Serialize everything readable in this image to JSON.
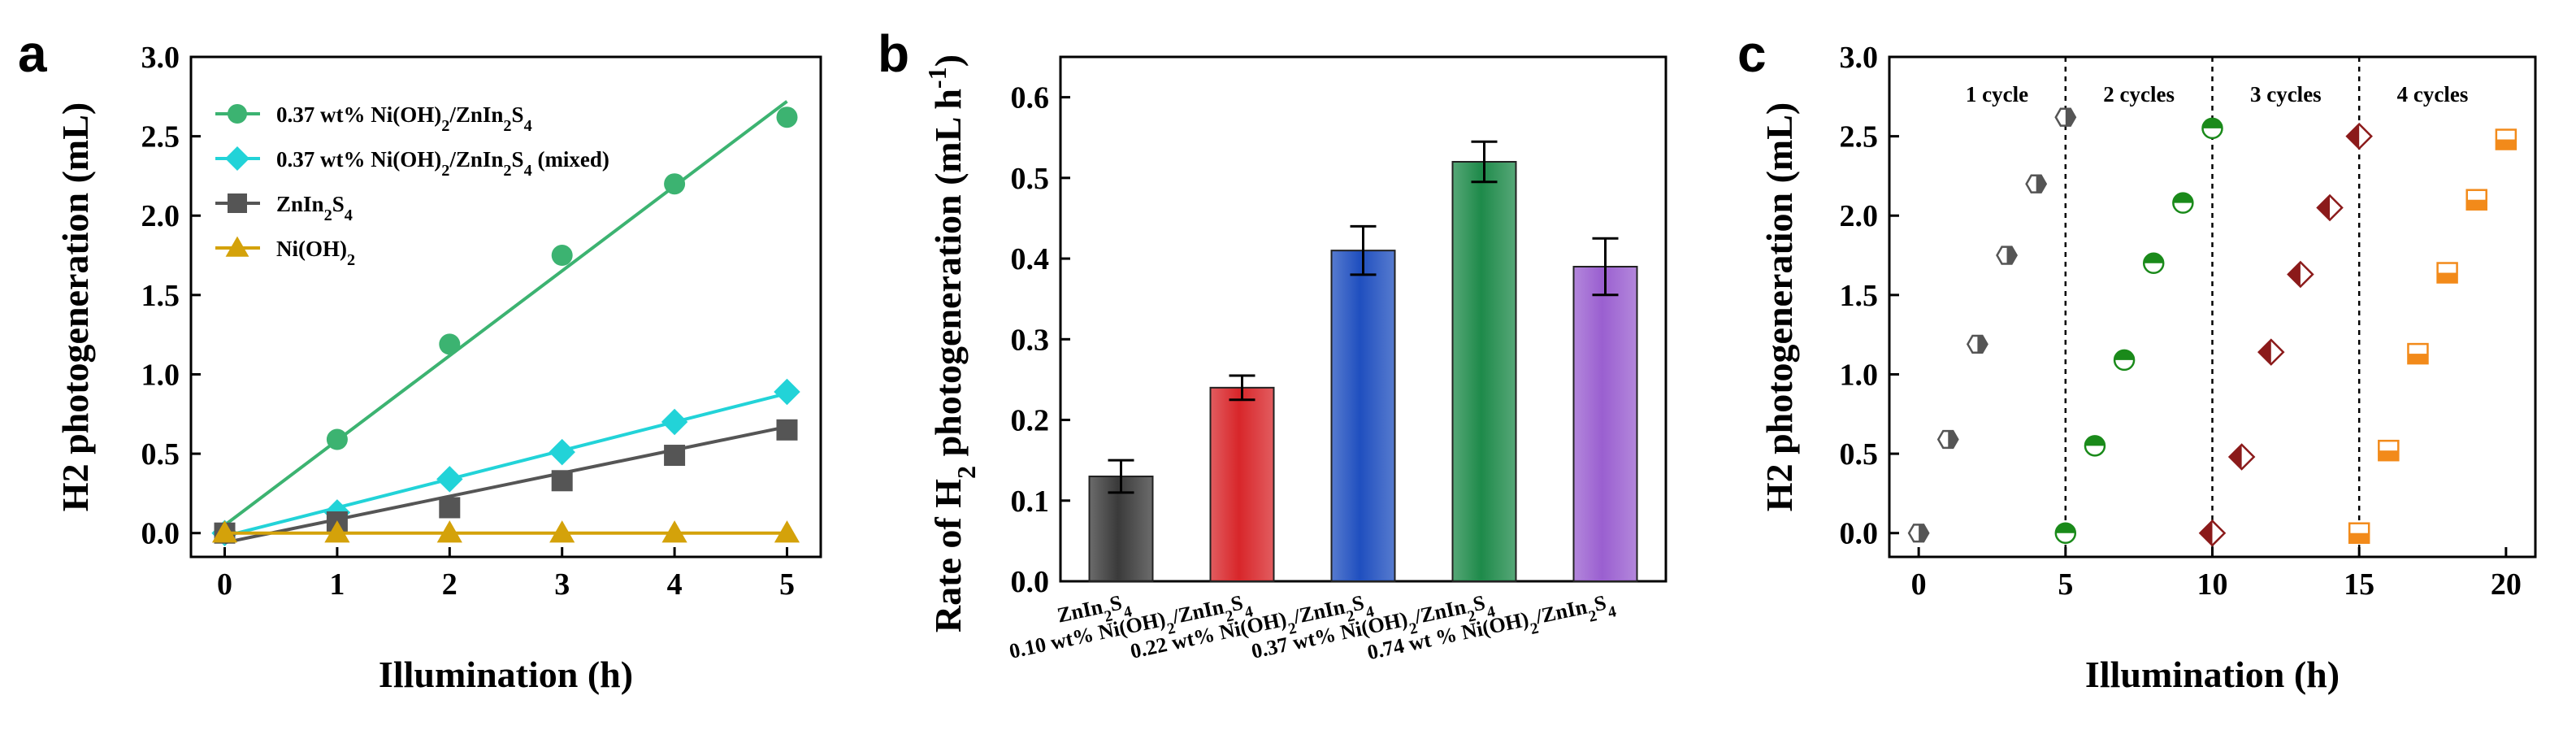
{
  "chart_data": [
    {
      "panel": "a",
      "type": "line",
      "title": "",
      "xlabel": "Illumination (h)",
      "ylabel": "H2 photogeneration (mL)",
      "xlim": [
        -0.3,
        5.3
      ],
      "ylim": [
        -0.15,
        3.0
      ],
      "xticks": [
        "0",
        "1",
        "2",
        "3",
        "4",
        "5"
      ],
      "yticks": [
        "0.0",
        "0.5",
        "1.0",
        "1.5",
        "2.0",
        "2.5",
        "3.0"
      ],
      "legend_position": "top-left",
      "x": [
        0,
        1,
        2,
        3,
        4,
        5
      ],
      "series": [
        {
          "name": "0.37 wt% Ni(OH)2/ZnIn2S4",
          "color": "#3cb371",
          "marker": "circle",
          "values": [
            0.0,
            0.59,
            1.19,
            1.75,
            2.2,
            2.62
          ],
          "fit_line": [
            0.05,
            2.72
          ]
        },
        {
          "name": "0.37 wt% Ni(OH)2/ZnIn2S4 (mixed)",
          "color": "#22d3d8",
          "marker": "diamond",
          "values": [
            0.0,
            0.13,
            0.34,
            0.51,
            0.7,
            0.89
          ],
          "fit_line": [
            -0.02,
            0.88
          ]
        },
        {
          "name": "ZnIn2S4",
          "color": "#555555",
          "marker": "square",
          "values": [
            0.0,
            0.07,
            0.16,
            0.33,
            0.49,
            0.65
          ],
          "fit_line": [
            -0.06,
            0.67
          ]
        },
        {
          "name": "Ni(OH)2",
          "color": "#d4a20a",
          "marker": "triangle",
          "values": [
            0.0,
            0.0,
            0.0,
            0.0,
            0.0,
            0.0
          ],
          "fit_line": [
            0.0,
            0.0
          ]
        }
      ]
    },
    {
      "panel": "b",
      "type": "bar",
      "title": "",
      "xlabel": "",
      "ylabel": "Rate of H2 photogeneration (mL h-1)",
      "ylim": [
        0.0,
        0.65
      ],
      "yticks": [
        "0.0",
        "0.1",
        "0.2",
        "0.3",
        "0.4",
        "0.5",
        "0.6"
      ],
      "categories": [
        "ZnIn2S4",
        "0.10 wt% Ni(OH)2/ZnIn2S4",
        "0.22 wt% Ni(OH)2/ZnIn2S4",
        "0.37 wt% Ni(OH)2/ZnIn2S4",
        "0.74 wt % Ni(OH)2/ZnIn2S4"
      ],
      "values": [
        0.13,
        0.24,
        0.41,
        0.52,
        0.39
      ],
      "errors": [
        0.02,
        0.015,
        0.03,
        0.025,
        0.035
      ],
      "colors": [
        "#3a3a3a",
        "#d8262a",
        "#1f4fbf",
        "#1e8a4a",
        "#9a5fd0"
      ]
    },
    {
      "panel": "c",
      "type": "scatter",
      "title": "",
      "xlabel": "Illumination (h)",
      "ylabel": "H2 photogeneration (mL)",
      "xlim": [
        -1,
        21
      ],
      "ylim": [
        -0.15,
        3.0
      ],
      "xticks": [
        "0",
        "5",
        "10",
        "15",
        "20"
      ],
      "yticks": [
        "0.0",
        "0.5",
        "1.0",
        "1.5",
        "2.0",
        "2.5",
        "3.0"
      ],
      "cycle_dividers": [
        5,
        10,
        15
      ],
      "cycle_labels": [
        "1 cycle",
        "2 cycles",
        "3 cycles",
        "4 cycles"
      ],
      "series": [
        {
          "marker": "half-hexagon",
          "color": "#555555",
          "x": [
            0,
            1,
            2,
            3,
            4,
            5
          ],
          "values": [
            0.0,
            0.59,
            1.19,
            1.75,
            2.2,
            2.62
          ]
        },
        {
          "marker": "half-circle",
          "color": "#1a8a1a",
          "x": [
            5,
            6,
            7,
            8,
            9,
            10
          ],
          "values": [
            0.0,
            0.55,
            1.09,
            1.7,
            2.08,
            2.55
          ]
        },
        {
          "marker": "half-diamond",
          "color": "#8b1a1a",
          "x": [
            10,
            11,
            12,
            13,
            14,
            15
          ],
          "values": [
            0.0,
            0.48,
            1.14,
            1.63,
            2.05,
            2.5
          ]
        },
        {
          "marker": "half-square",
          "color": "#f28a1a",
          "x": [
            15,
            16,
            17,
            18,
            19,
            20
          ],
          "values": [
            0.0,
            0.52,
            1.13,
            1.64,
            2.1,
            2.48
          ]
        }
      ]
    }
  ]
}
